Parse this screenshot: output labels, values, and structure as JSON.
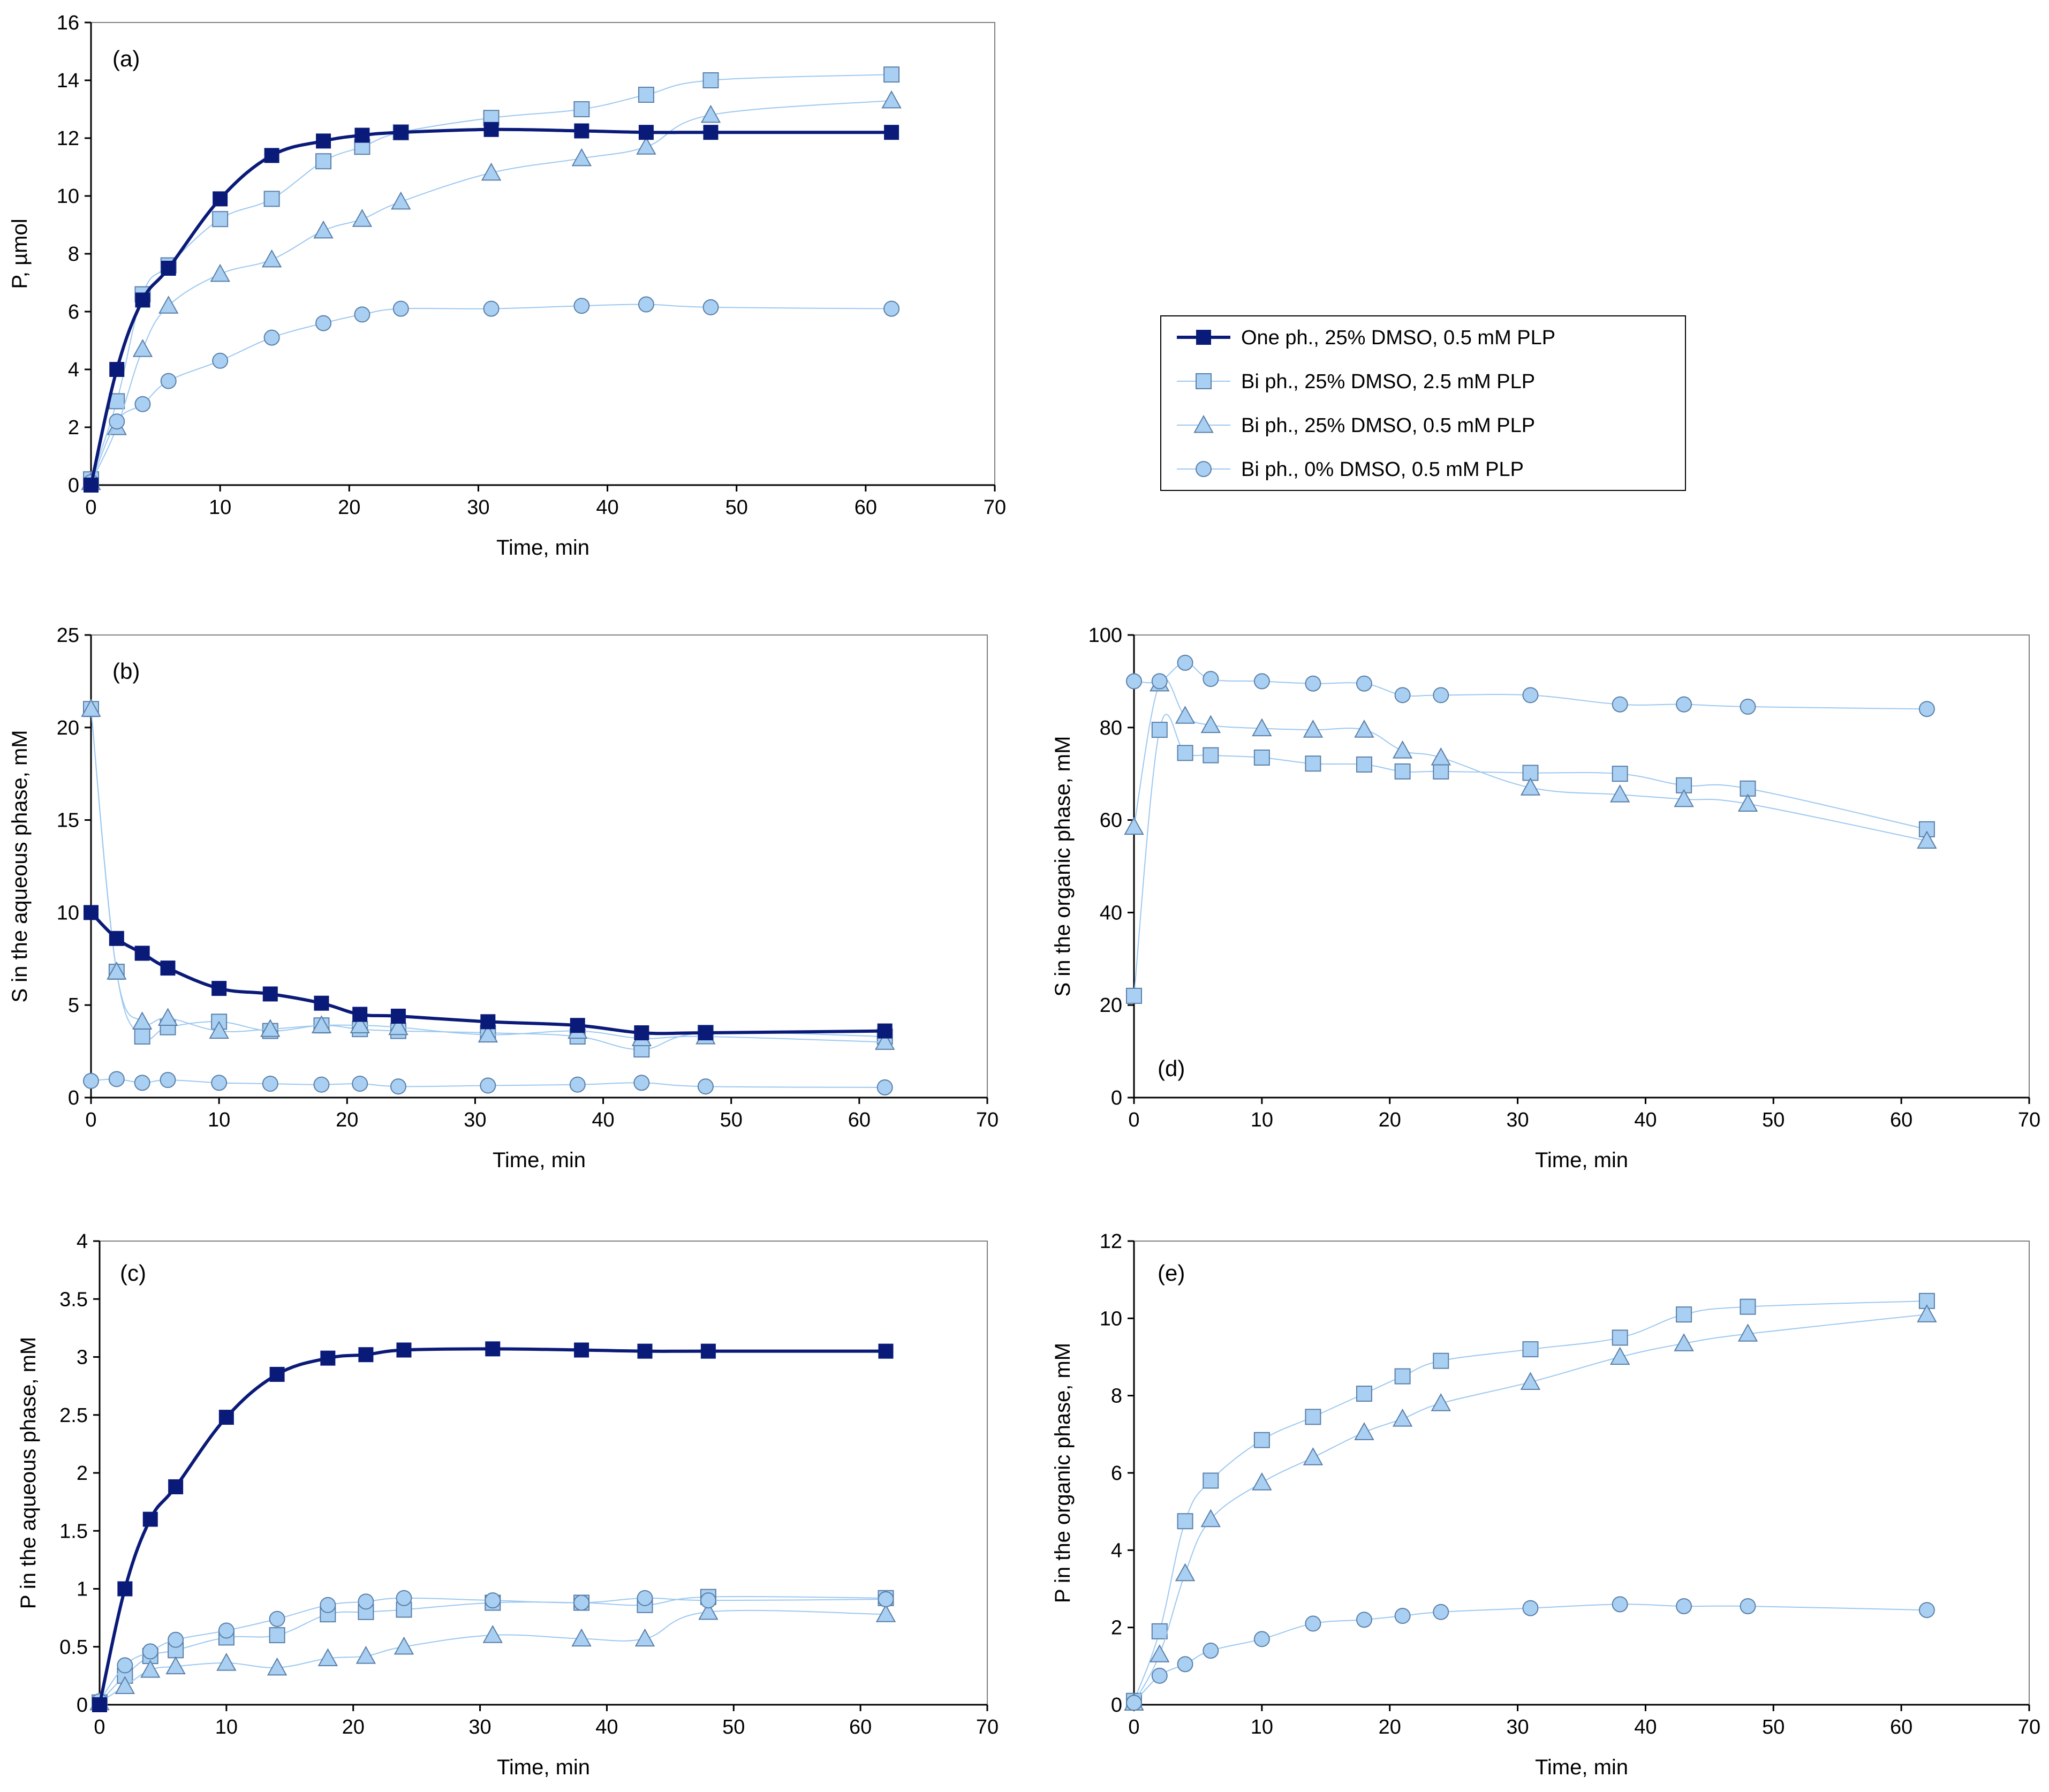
{
  "series_styles": [
    {
      "key": "one_ph",
      "marker": "square",
      "color": "#0a1a78",
      "fill": "#0a1a78",
      "width": 6
    },
    {
      "key": "bi_25_25",
      "marker": "square",
      "color": "#9cc8f0",
      "fill": "#a9cff2",
      "width": 2
    },
    {
      "key": "bi_25_05",
      "marker": "triangle",
      "color": "#9cc8f0",
      "fill": "#a9cff2",
      "width": 2
    },
    {
      "key": "bi_0_05",
      "marker": "circle",
      "color": "#9cc8f0",
      "fill": "#a9cff2",
      "width": 2
    }
  ],
  "legend": {
    "entries": [
      {
        "key": "one_ph",
        "label": "One ph., 25% DMSO, 0.5 mM PLP"
      },
      {
        "key": "bi_25_25",
        "label": "Bi ph., 25% DMSO, 2.5 mM PLP"
      },
      {
        "key": "bi_25_05",
        "label": "Bi ph., 25% DMSO, 0.5 mM PLP"
      },
      {
        "key": "bi_0_05",
        "label": "Bi ph., 0% DMSO, 0.5 mM PLP"
      }
    ]
  },
  "chart_data": [
    {
      "id": "a",
      "type": "line",
      "tag": "(a)",
      "xlabel": "Time, min",
      "ylabel": "P, µmol",
      "xlim": [
        0,
        70
      ],
      "ylim": [
        0,
        16
      ],
      "xticks": [
        0,
        10,
        20,
        30,
        40,
        50,
        60,
        70
      ],
      "yticks": [
        0,
        2,
        4,
        6,
        8,
        10,
        12,
        14,
        16
      ],
      "series": [
        {
          "key": "one_ph",
          "x": [
            0,
            2,
            4,
            6,
            10,
            14,
            18,
            21,
            24,
            31,
            38,
            43,
            48,
            62
          ],
          "y": [
            0,
            4.0,
            6.4,
            7.5,
            9.9,
            11.4,
            11.9,
            12.1,
            12.2,
            12.3,
            12.25,
            12.2,
            12.2,
            12.2
          ]
        },
        {
          "key": "bi_25_25",
          "x": [
            0,
            2,
            4,
            6,
            10,
            14,
            18,
            21,
            24,
            31,
            38,
            43,
            48,
            62
          ],
          "y": [
            0.2,
            2.9,
            6.6,
            7.6,
            9.2,
            9.9,
            11.2,
            11.7,
            12.2,
            12.7,
            13.0,
            13.5,
            14.0,
            14.2
          ]
        },
        {
          "key": "bi_25_05",
          "x": [
            0,
            2,
            4,
            6,
            10,
            14,
            18,
            21,
            24,
            31,
            38,
            43,
            48,
            62
          ],
          "y": [
            0.1,
            2.0,
            4.7,
            6.2,
            7.3,
            7.8,
            8.8,
            9.2,
            9.8,
            10.8,
            11.3,
            11.7,
            12.8,
            13.3
          ]
        },
        {
          "key": "bi_0_05",
          "x": [
            0,
            2,
            4,
            6,
            10,
            14,
            18,
            21,
            24,
            31,
            38,
            43,
            48,
            62
          ],
          "y": [
            0.1,
            2.2,
            2.8,
            3.6,
            4.3,
            5.1,
            5.6,
            5.9,
            6.1,
            6.1,
            6.2,
            6.25,
            6.15,
            6.1
          ]
        }
      ]
    },
    {
      "id": "b",
      "type": "line",
      "tag": "(b)",
      "xlabel": "Time, min",
      "ylabel": "S in the aqueous phase, mM",
      "xlim": [
        0,
        70
      ],
      "ylim": [
        0,
        25
      ],
      "xticks": [
        0,
        10,
        20,
        30,
        40,
        50,
        60,
        70
      ],
      "yticks": [
        0,
        5,
        10,
        15,
        20,
        25
      ],
      "series": [
        {
          "key": "one_ph",
          "x": [
            0,
            2,
            4,
            6,
            10,
            14,
            18,
            21,
            24,
            31,
            38,
            43,
            48,
            62
          ],
          "y": [
            10.0,
            8.6,
            7.8,
            7.0,
            5.9,
            5.6,
            5.1,
            4.5,
            4.4,
            4.1,
            3.9,
            3.5,
            3.5,
            3.6
          ]
        },
        {
          "key": "bi_25_25",
          "x": [
            0,
            2,
            4,
            6,
            10,
            14,
            18,
            21,
            24,
            31,
            38,
            43,
            48,
            62
          ],
          "y": [
            21.0,
            6.8,
            3.3,
            3.8,
            4.1,
            3.6,
            3.9,
            3.7,
            3.6,
            3.5,
            3.3,
            2.6,
            3.5,
            3.3
          ]
        },
        {
          "key": "bi_25_05",
          "x": [
            0,
            2,
            4,
            6,
            10,
            14,
            18,
            21,
            24,
            31,
            38,
            43,
            48,
            62
          ],
          "y": [
            21.0,
            6.8,
            4.1,
            4.3,
            3.6,
            3.7,
            3.9,
            3.9,
            3.8,
            3.4,
            3.6,
            3.2,
            3.3,
            3.0
          ]
        },
        {
          "key": "bi_0_05",
          "x": [
            0,
            2,
            4,
            6,
            10,
            14,
            18,
            21,
            24,
            31,
            38,
            43,
            48,
            62
          ],
          "y": [
            0.9,
            1.0,
            0.8,
            0.95,
            0.8,
            0.75,
            0.7,
            0.75,
            0.6,
            0.65,
            0.7,
            0.8,
            0.6,
            0.55
          ]
        }
      ]
    },
    {
      "id": "c",
      "type": "line",
      "tag": "(c)",
      "xlabel": "Time, min",
      "ylabel": "P in the aqueous phase, mM",
      "xlim": [
        0,
        70
      ],
      "ylim": [
        0,
        4
      ],
      "xticks": [
        0,
        10,
        20,
        30,
        40,
        50,
        60,
        70
      ],
      "yticks": [
        0,
        0.5,
        1,
        1.5,
        2,
        2.5,
        3,
        3.5,
        4
      ],
      "series": [
        {
          "key": "one_ph",
          "x": [
            0,
            2,
            4,
            6,
            10,
            14,
            18,
            21,
            24,
            31,
            38,
            43,
            48,
            62
          ],
          "y": [
            0,
            1.0,
            1.6,
            1.88,
            2.48,
            2.85,
            2.99,
            3.02,
            3.06,
            3.07,
            3.06,
            3.05,
            3.05,
            3.05
          ]
        },
        {
          "key": "bi_25_25",
          "x": [
            0,
            2,
            4,
            6,
            10,
            14,
            18,
            21,
            24,
            31,
            38,
            43,
            48,
            62
          ],
          "y": [
            0.02,
            0.25,
            0.42,
            0.47,
            0.58,
            0.6,
            0.78,
            0.8,
            0.82,
            0.88,
            0.88,
            0.86,
            0.93,
            0.92
          ]
        },
        {
          "key": "bi_25_05",
          "x": [
            0,
            2,
            4,
            6,
            10,
            14,
            18,
            21,
            24,
            31,
            38,
            43,
            48,
            62
          ],
          "y": [
            0.02,
            0.16,
            0.3,
            0.33,
            0.36,
            0.32,
            0.4,
            0.42,
            0.5,
            0.6,
            0.57,
            0.57,
            0.8,
            0.78
          ]
        },
        {
          "key": "bi_0_05",
          "x": [
            0,
            2,
            4,
            6,
            10,
            14,
            18,
            21,
            24,
            31,
            38,
            43,
            48,
            62
          ],
          "y": [
            0.03,
            0.34,
            0.46,
            0.56,
            0.64,
            0.74,
            0.86,
            0.89,
            0.92,
            0.9,
            0.88,
            0.92,
            0.9,
            0.91
          ]
        }
      ]
    },
    {
      "id": "d",
      "type": "line",
      "tag": "(d)",
      "xlabel": "Time, min",
      "ylabel": "S in the organic phase, mM",
      "xlim": [
        0,
        70
      ],
      "ylim": [
        0,
        100
      ],
      "xticks": [
        0,
        10,
        20,
        30,
        40,
        50,
        60,
        70
      ],
      "yticks": [
        0,
        20,
        40,
        60,
        80,
        100
      ],
      "series": [
        {
          "key": "bi_25_25",
          "x": [
            0,
            2,
            4,
            6,
            10,
            14,
            18,
            21,
            24,
            31,
            38,
            43,
            48,
            62
          ],
          "y": [
            22,
            79.5,
            74.5,
            74,
            73.5,
            72.2,
            72,
            70.5,
            70.5,
            70.2,
            70,
            67.5,
            66.8,
            58
          ]
        },
        {
          "key": "bi_25_05",
          "x": [
            0,
            2,
            4,
            6,
            10,
            14,
            18,
            21,
            24,
            31,
            38,
            43,
            48,
            62
          ],
          "y": [
            58.5,
            89.5,
            82.5,
            80.5,
            79.8,
            79.5,
            79.5,
            75,
            73.5,
            67,
            65.5,
            64.5,
            63.5,
            55.5
          ]
        },
        {
          "key": "bi_0_05",
          "x": [
            0,
            2,
            4,
            6,
            10,
            14,
            18,
            21,
            24,
            31,
            38,
            43,
            48,
            62
          ],
          "y": [
            90,
            90,
            94,
            90.5,
            90,
            89.5,
            89.5,
            87,
            87,
            87,
            85,
            85,
            84.5,
            84
          ]
        }
      ]
    },
    {
      "id": "e",
      "type": "line",
      "tag": "(e)",
      "xlabel": "Time, min",
      "ylabel": "P in the organic phase, mM",
      "xlim": [
        0,
        70
      ],
      "ylim": [
        0,
        12
      ],
      "xticks": [
        0,
        10,
        20,
        30,
        40,
        50,
        60,
        70
      ],
      "yticks": [
        0,
        2,
        4,
        6,
        8,
        10,
        12
      ],
      "series": [
        {
          "key": "bi_25_25",
          "x": [
            0,
            2,
            4,
            6,
            10,
            14,
            18,
            21,
            24,
            31,
            38,
            43,
            48,
            62
          ],
          "y": [
            0.1,
            1.9,
            4.75,
            5.8,
            6.85,
            7.45,
            8.05,
            8.5,
            8.9,
            9.2,
            9.5,
            10.1,
            10.3,
            10.45
          ]
        },
        {
          "key": "bi_25_05",
          "x": [
            0,
            2,
            4,
            6,
            10,
            14,
            18,
            21,
            24,
            31,
            38,
            43,
            48,
            62
          ],
          "y": [
            0.05,
            1.3,
            3.4,
            4.8,
            5.75,
            6.4,
            7.05,
            7.4,
            7.8,
            8.35,
            9.0,
            9.35,
            9.6,
            10.1
          ]
        },
        {
          "key": "bi_0_05",
          "x": [
            0,
            2,
            4,
            6,
            10,
            14,
            18,
            21,
            24,
            31,
            38,
            43,
            48,
            62
          ],
          "y": [
            0.05,
            0.75,
            1.05,
            1.4,
            1.7,
            2.1,
            2.2,
            2.3,
            2.4,
            2.5,
            2.6,
            2.55,
            2.55,
            2.45
          ]
        }
      ]
    }
  ]
}
